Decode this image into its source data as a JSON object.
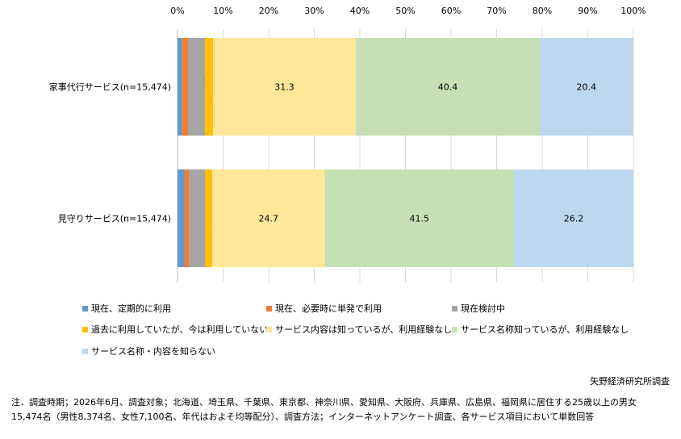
{
  "chart_data": {
    "type": "bar",
    "orientation": "horizontal",
    "stacked": true,
    "x_ticks": [
      "0%",
      "10%",
      "20%",
      "30%",
      "40%",
      "50%",
      "60%",
      "70%",
      "80%",
      "90%",
      "100%"
    ],
    "xlim": [
      0,
      100
    ],
    "grid": true,
    "legend_position": "bottom",
    "categories": [
      "家事代行サービス(n=15,474)",
      "見守りサービス(n=15,474)"
    ],
    "series": [
      {
        "name": "現在、定期的に利用",
        "color": "#5b9bd5",
        "values": [
          0.9,
          1.5
        ]
      },
      {
        "name": "現在、必要時に単発で利用",
        "color": "#ed7d31",
        "values": [
          1.4,
          1.1
        ]
      },
      {
        "name": "現在検討中",
        "color": "#a5a5a5",
        "values": [
          3.7,
          3.5
        ]
      },
      {
        "name": "過去に利用していたが、今は利用していない",
        "color": "#ffc000",
        "values": [
          1.8,
          1.5
        ]
      },
      {
        "name": "サービス内容は知っているが、利用経験なし",
        "color": "#ffe699",
        "values": [
          31.3,
          24.7
        ]
      },
      {
        "name": "サービス名称知っているが、利用経験なし",
        "color": "#c5e0b4",
        "values": [
          40.4,
          41.5
        ]
      },
      {
        "name": "サービス名称・内容を知らない",
        "color": "#bdd7ee",
        "values": [
          20.4,
          26.2
        ]
      }
    ]
  },
  "source": "矢野経済研究所調査",
  "note_lines": [
    "注．調査時期；2026年6月、調査対象；北海道、埼玉県、千葉県、東京都、神奈川県、愛知県、大阪府、兵庫県、広島県、福岡県に居住する25歳以上の男女",
    "15,474名（男性8,374名、女性7,100名、年代はおよそ均等配分）、調査方法；インターネットアンケート調査、各サービス項目において単数回答"
  ]
}
